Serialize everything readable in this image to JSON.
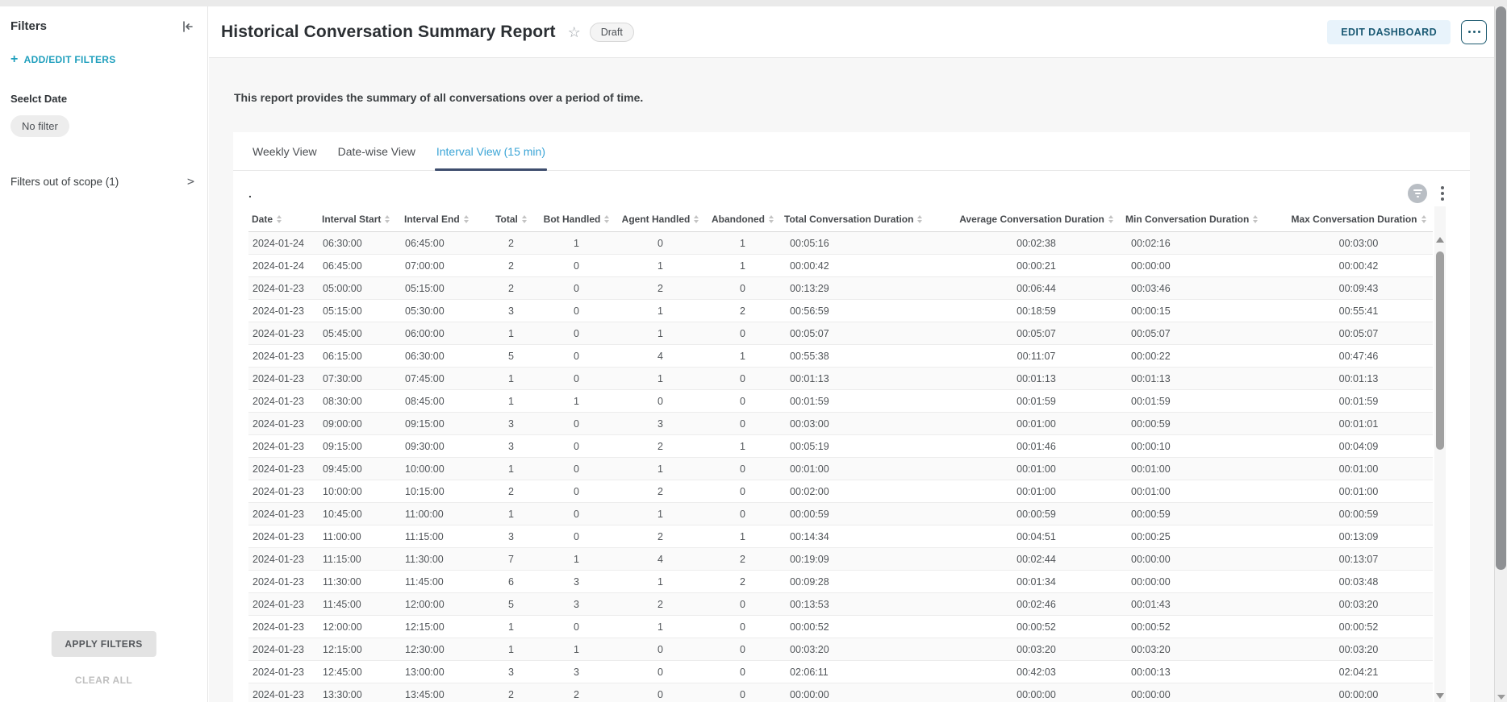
{
  "sidebar": {
    "title": "Filters",
    "add_edit_label": "ADD/EDIT FILTERS",
    "filter_group_label": "Seelct Date",
    "filter_chip": "No filter",
    "out_of_scope_label": "Filters out of scope (1)",
    "apply_button": "APPLY FILTERS",
    "clear_button": "CLEAR ALL"
  },
  "header": {
    "title": "Historical Conversation Summary Report",
    "status_badge": "Draft",
    "edit_button": "EDIT DASHBOARD"
  },
  "report": {
    "description": "This report provides the summary of all conversations over a period of time.",
    "widget_title": ".",
    "tabs": [
      {
        "label": "Weekly View",
        "active": false
      },
      {
        "label": "Date-wise View",
        "active": false
      },
      {
        "label": "Interval View (15 min)",
        "active": true
      }
    ]
  },
  "table": {
    "columns": [
      {
        "label": "Date",
        "sortable": true
      },
      {
        "label": "Interval Start",
        "sortable": true
      },
      {
        "label": "Interval End",
        "sortable": true
      },
      {
        "label": "Total",
        "sortable": true
      },
      {
        "label": "Bot Handled",
        "sortable": true
      },
      {
        "label": "Agent Handled",
        "sortable": true
      },
      {
        "label": "Abandoned",
        "sortable": true
      },
      {
        "label": "Total Conversation Duration",
        "sortable": true
      },
      {
        "label": "Average Conversation Duration",
        "sortable": true
      },
      {
        "label": "Min Conversation Duration",
        "sortable": true
      },
      {
        "label": "Max Conversation Duration",
        "sortable": true
      }
    ],
    "rows": [
      [
        "2024-01-24",
        "06:30:00",
        "06:45:00",
        "2",
        "1",
        "0",
        "1",
        "00:05:16",
        "00:02:38",
        "00:02:16",
        "00:03:00"
      ],
      [
        "2024-01-24",
        "06:45:00",
        "07:00:00",
        "2",
        "0",
        "1",
        "1",
        "00:00:42",
        "00:00:21",
        "00:00:00",
        "00:00:42"
      ],
      [
        "2024-01-23",
        "05:00:00",
        "05:15:00",
        "2",
        "0",
        "2",
        "0",
        "00:13:29",
        "00:06:44",
        "00:03:46",
        "00:09:43"
      ],
      [
        "2024-01-23",
        "05:15:00",
        "05:30:00",
        "3",
        "0",
        "1",
        "2",
        "00:56:59",
        "00:18:59",
        "00:00:15",
        "00:55:41"
      ],
      [
        "2024-01-23",
        "05:45:00",
        "06:00:00",
        "1",
        "0",
        "1",
        "0",
        "00:05:07",
        "00:05:07",
        "00:05:07",
        "00:05:07"
      ],
      [
        "2024-01-23",
        "06:15:00",
        "06:30:00",
        "5",
        "0",
        "4",
        "1",
        "00:55:38",
        "00:11:07",
        "00:00:22",
        "00:47:46"
      ],
      [
        "2024-01-23",
        "07:30:00",
        "07:45:00",
        "1",
        "0",
        "1",
        "0",
        "00:01:13",
        "00:01:13",
        "00:01:13",
        "00:01:13"
      ],
      [
        "2024-01-23",
        "08:30:00",
        "08:45:00",
        "1",
        "1",
        "0",
        "0",
        "00:01:59",
        "00:01:59",
        "00:01:59",
        "00:01:59"
      ],
      [
        "2024-01-23",
        "09:00:00",
        "09:15:00",
        "3",
        "0",
        "3",
        "0",
        "00:03:00",
        "00:01:00",
        "00:00:59",
        "00:01:01"
      ],
      [
        "2024-01-23",
        "09:15:00",
        "09:30:00",
        "3",
        "0",
        "2",
        "1",
        "00:05:19",
        "00:01:46",
        "00:00:10",
        "00:04:09"
      ],
      [
        "2024-01-23",
        "09:45:00",
        "10:00:00",
        "1",
        "0",
        "1",
        "0",
        "00:01:00",
        "00:01:00",
        "00:01:00",
        "00:01:00"
      ],
      [
        "2024-01-23",
        "10:00:00",
        "10:15:00",
        "2",
        "0",
        "2",
        "0",
        "00:02:00",
        "00:01:00",
        "00:01:00",
        "00:01:00"
      ],
      [
        "2024-01-23",
        "10:45:00",
        "11:00:00",
        "1",
        "0",
        "1",
        "0",
        "00:00:59",
        "00:00:59",
        "00:00:59",
        "00:00:59"
      ],
      [
        "2024-01-23",
        "11:00:00",
        "11:15:00",
        "3",
        "0",
        "2",
        "1",
        "00:14:34",
        "00:04:51",
        "00:00:25",
        "00:13:09"
      ],
      [
        "2024-01-23",
        "11:15:00",
        "11:30:00",
        "7",
        "1",
        "4",
        "2",
        "00:19:09",
        "00:02:44",
        "00:00:00",
        "00:13:07"
      ],
      [
        "2024-01-23",
        "11:30:00",
        "11:45:00",
        "6",
        "3",
        "1",
        "2",
        "00:09:28",
        "00:01:34",
        "00:00:00",
        "00:03:48"
      ],
      [
        "2024-01-23",
        "11:45:00",
        "12:00:00",
        "5",
        "3",
        "2",
        "0",
        "00:13:53",
        "00:02:46",
        "00:01:43",
        "00:03:20"
      ],
      [
        "2024-01-23",
        "12:00:00",
        "12:15:00",
        "1",
        "0",
        "1",
        "0",
        "00:00:52",
        "00:00:52",
        "00:00:52",
        "00:00:52"
      ],
      [
        "2024-01-23",
        "12:15:00",
        "12:30:00",
        "1",
        "1",
        "0",
        "0",
        "00:03:20",
        "00:03:20",
        "00:03:20",
        "00:03:20"
      ],
      [
        "2024-01-23",
        "12:45:00",
        "13:00:00",
        "3",
        "3",
        "0",
        "0",
        "02:06:11",
        "00:42:03",
        "00:00:13",
        "02:04:21"
      ],
      [
        "2024-01-23",
        "13:30:00",
        "13:45:00",
        "2",
        "2",
        "0",
        "0",
        "00:00:00",
        "00:00:00",
        "00:00:00",
        "00:00:00"
      ]
    ]
  },
  "colors": {
    "accent_teal": "#1f9fbd",
    "tab_active_blue": "#3aa4d6",
    "tab_underline": "#3e4e6e",
    "edit_button_bg": "#e8f3fb",
    "edit_button_text": "#1b5a74",
    "page_background": "#f7f7f7"
  }
}
